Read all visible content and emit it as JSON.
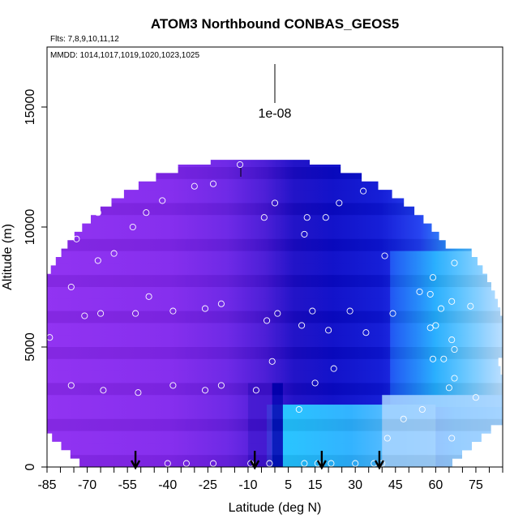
{
  "chart_data": {
    "type": "heatmap",
    "title": "ATOM3 Northbound CONBAS_GEOS5",
    "flights_label": "Flts: 7,8,9,10,11,12",
    "dates_label": "MMDD: 1014,1017,1019,1020,1023,1025",
    "xlabel": "Latitude (deg N)",
    "ylabel": "Altitude (m)",
    "xlim": [
      -85,
      85
    ],
    "ylim": [
      0,
      17500
    ],
    "x_ticks": [
      -85,
      -70,
      -55,
      -40,
      -25,
      -10,
      5,
      15,
      30,
      45,
      60,
      75
    ],
    "y_ticks": [
      0,
      5000,
      10000,
      15000
    ],
    "scale_bar_label": "1e-08",
    "grid": false,
    "arrows_lat": [
      -52,
      -7.5,
      17.5,
      39
    ],
    "colors": {
      "purple": "#8f2cf2",
      "violet": "#6a22e6",
      "indigo": "#3d12cf",
      "dark_blue": "#0a0ac8",
      "blue": "#1f3df0",
      "light_blue": "#2fa8ff",
      "cyan": "#19c3ff",
      "pale_blue": "#a6d4ff",
      "marker": "#ffffff"
    },
    "sample_points": [
      {
        "x": -84,
        "y": 5400
      },
      {
        "x": -76,
        "y": 3400
      },
      {
        "x": -76,
        "y": 7500
      },
      {
        "x": -74,
        "y": 9500
      },
      {
        "x": -71,
        "y": 6300
      },
      {
        "x": -66,
        "y": 10600
      },
      {
        "x": -66,
        "y": 8600
      },
      {
        "x": -65,
        "y": 6400
      },
      {
        "x": -64,
        "y": 3200
      },
      {
        "x": -60,
        "y": 8900
      },
      {
        "x": -53,
        "y": 10000
      },
      {
        "x": -52,
        "y": 6400
      },
      {
        "x": -51,
        "y": 3100
      },
      {
        "x": -48,
        "y": 10600
      },
      {
        "x": -47,
        "y": 7100
      },
      {
        "x": -42,
        "y": 11100
      },
      {
        "x": -38,
        "y": 6500
      },
      {
        "x": -38,
        "y": 3400
      },
      {
        "x": -30,
        "y": 11700
      },
      {
        "x": -26,
        "y": 6600
      },
      {
        "x": -26,
        "y": 3200
      },
      {
        "x": -23,
        "y": 11800
      },
      {
        "x": -20,
        "y": 6800
      },
      {
        "x": -20,
        "y": 3400
      },
      {
        "x": -13,
        "y": 12600
      },
      {
        "x": -7,
        "y": 3200
      },
      {
        "x": -4,
        "y": 10400
      },
      {
        "x": -3,
        "y": 6100
      },
      {
        "x": -1,
        "y": 4400
      },
      {
        "x": 0,
        "y": 11000
      },
      {
        "x": 1,
        "y": 6400
      },
      {
        "x": 10,
        "y": 5900
      },
      {
        "x": 11,
        "y": 9700
      },
      {
        "x": 12,
        "y": 10400
      },
      {
        "x": 14,
        "y": 6500
      },
      {
        "x": 15,
        "y": 3500
      },
      {
        "x": 19,
        "y": 10400
      },
      {
        "x": 20,
        "y": 5700
      },
      {
        "x": 22,
        "y": 4100
      },
      {
        "x": 24,
        "y": 11000
      },
      {
        "x": 28,
        "y": 6500
      },
      {
        "x": 33,
        "y": 11500
      },
      {
        "x": 34,
        "y": 5600
      },
      {
        "x": 41,
        "y": 8800
      },
      {
        "x": 44,
        "y": 6400
      },
      {
        "x": 42,
        "y": 1200
      },
      {
        "x": 48,
        "y": 2000
      },
      {
        "x": 54,
        "y": 7300
      },
      {
        "x": 55,
        "y": 2400
      },
      {
        "x": 58,
        "y": 7200
      },
      {
        "x": 58,
        "y": 5800
      },
      {
        "x": 59,
        "y": 4500
      },
      {
        "x": 59,
        "y": 7900
      },
      {
        "x": 60,
        "y": 5900
      },
      {
        "x": 62,
        "y": 6600
      },
      {
        "x": 63,
        "y": 4500
      },
      {
        "x": 65,
        "y": 3300
      },
      {
        "x": 66,
        "y": 6900
      },
      {
        "x": 66,
        "y": 5300
      },
      {
        "x": 67,
        "y": 4900
      },
      {
        "x": 67,
        "y": 3700
      },
      {
        "x": 67,
        "y": 8500
      },
      {
        "x": 66,
        "y": 1200
      },
      {
        "x": 73,
        "y": 6700
      },
      {
        "x": 75,
        "y": 2900
      },
      {
        "x": 9,
        "y": 2400
      },
      {
        "x": -40,
        "y": 150
      },
      {
        "x": -33,
        "y": 150
      },
      {
        "x": -23,
        "y": 150
      },
      {
        "x": -9,
        "y": 150
      },
      {
        "x": -2,
        "y": 150
      },
      {
        "x": 11,
        "y": 150
      },
      {
        "x": 16,
        "y": 150
      },
      {
        "x": 21,
        "y": 150
      },
      {
        "x": 30,
        "y": 150
      },
      {
        "x": 37,
        "y": 150
      },
      {
        "x": 40,
        "y": 150
      }
    ]
  }
}
